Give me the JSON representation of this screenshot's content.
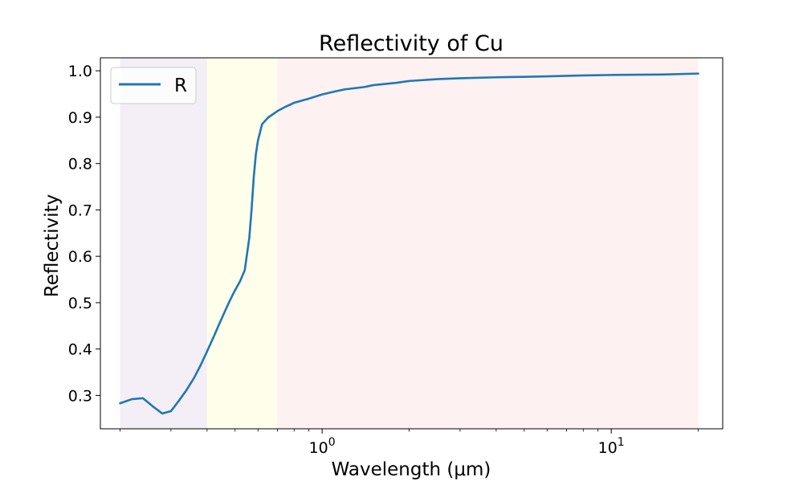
{
  "chart_data": {
    "type": "line",
    "title": "Reflectivity of Cu",
    "xlabel": "Wavelength (μm)",
    "ylabel": "Reflectivity",
    "xscale": "log",
    "xlim": [
      0.171,
      24.3
    ],
    "ylim": [
      0.228,
      1.028
    ],
    "grid": false,
    "legend_placement": "top-left",
    "x_ticks": [
      {
        "value": 1,
        "base": "10",
        "exp": "0"
      },
      {
        "value": 10,
        "base": "10",
        "exp": "1"
      }
    ],
    "y_ticks": [
      {
        "value": 0.3,
        "label": "0.3"
      },
      {
        "value": 0.4,
        "label": "0.4"
      },
      {
        "value": 0.5,
        "label": "0.5"
      },
      {
        "value": 0.6,
        "label": "0.6"
      },
      {
        "value": 0.7,
        "label": "0.7"
      },
      {
        "value": 0.8,
        "label": "0.8"
      },
      {
        "value": 0.9,
        "label": "0.9"
      },
      {
        "value": 1.0,
        "label": "1.0"
      }
    ],
    "regions": [
      {
        "x0": 0.2,
        "x1": 0.4,
        "color": "#ece2f0"
      },
      {
        "x0": 0.4,
        "x1": 0.7,
        "color": "#fffddc"
      },
      {
        "x0": 0.7,
        "x1": 20,
        "color": "#fde8e8"
      }
    ],
    "series": [
      {
        "name": "R",
        "color": "#1f77b4",
        "x": [
          0.2,
          0.22,
          0.24,
          0.26,
          0.28,
          0.3,
          0.32,
          0.34,
          0.36,
          0.38,
          0.4,
          0.42,
          0.44,
          0.46,
          0.48,
          0.5,
          0.52,
          0.54,
          0.56,
          0.57,
          0.58,
          0.59,
          0.6,
          0.62,
          0.65,
          0.7,
          0.75,
          0.8,
          0.9,
          1.0,
          1.1,
          1.2,
          1.4,
          1.5,
          1.8,
          2.0,
          2.5,
          3.0,
          4.0,
          5.0,
          6.0,
          8.0,
          10.0,
          15.0,
          20.0
        ],
        "y": [
          0.283,
          0.292,
          0.294,
          0.276,
          0.261,
          0.266,
          0.289,
          0.312,
          0.337,
          0.365,
          0.395,
          0.424,
          0.453,
          0.48,
          0.505,
          0.527,
          0.546,
          0.57,
          0.64,
          0.7,
          0.77,
          0.82,
          0.85,
          0.885,
          0.899,
          0.913,
          0.923,
          0.931,
          0.94,
          0.949,
          0.955,
          0.96,
          0.965,
          0.969,
          0.974,
          0.978,
          0.982,
          0.984,
          0.986,
          0.987,
          0.988,
          0.99,
          0.991,
          0.992,
          0.994
        ]
      }
    ]
  }
}
